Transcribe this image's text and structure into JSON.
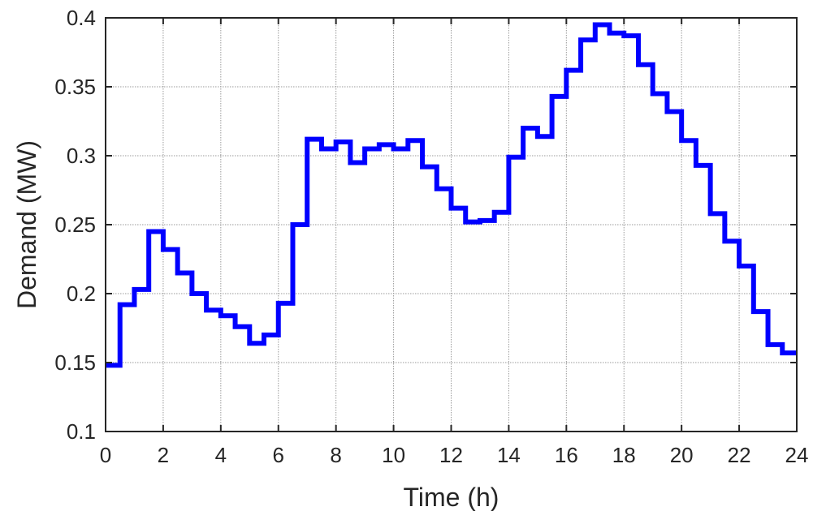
{
  "chart_data": {
    "type": "line",
    "step": "post",
    "title": "",
    "xlabel": "Time (h)",
    "ylabel": "Demand (MW)",
    "xlim": [
      0,
      24
    ],
    "ylim": [
      0.1,
      0.4
    ],
    "xticks": [
      0,
      2,
      4,
      6,
      8,
      10,
      12,
      14,
      16,
      18,
      20,
      22,
      24
    ],
    "yticks": [
      0.1,
      0.15,
      0.2,
      0.25,
      0.3,
      0.35,
      0.4
    ],
    "xtick_labels": [
      "0",
      "2",
      "4",
      "6",
      "8",
      "10",
      "12",
      "14",
      "16",
      "18",
      "20",
      "22",
      "24"
    ],
    "ytick_labels": [
      "0.1",
      "0.15",
      "0.2",
      "0.25",
      "0.3",
      "0.35",
      "0.4"
    ],
    "grid": true,
    "legend": "none",
    "series": [
      {
        "color": "#0000ff",
        "x": [
          0,
          0.5,
          1,
          1.5,
          2,
          2.5,
          3,
          3.5,
          4,
          4.5,
          5,
          5.5,
          6,
          6.5,
          7,
          7.5,
          8,
          8.5,
          9,
          9.5,
          10,
          10.5,
          11,
          11.5,
          12,
          12.5,
          13,
          13.5,
          14,
          14.5,
          15,
          15.5,
          16,
          16.5,
          17,
          17.5,
          18,
          18.5,
          19,
          19.5,
          20,
          20.5,
          21,
          21.5,
          22,
          22.5,
          23,
          23.5
        ],
        "values": [
          0.148,
          0.192,
          0.203,
          0.245,
          0.232,
          0.215,
          0.2,
          0.188,
          0.184,
          0.176,
          0.164,
          0.17,
          0.193,
          0.25,
          0.312,
          0.305,
          0.31,
          0.295,
          0.305,
          0.308,
          0.305,
          0.311,
          0.292,
          0.276,
          0.262,
          0.252,
          0.253,
          0.259,
          0.299,
          0.32,
          0.314,
          0.343,
          0.362,
          0.384,
          0.395,
          0.389,
          0.387,
          0.366,
          0.345,
          0.332,
          0.311,
          0.293,
          0.258,
          0.238,
          0.22,
          0.187,
          0.163,
          0.157
        ]
      }
    ]
  }
}
